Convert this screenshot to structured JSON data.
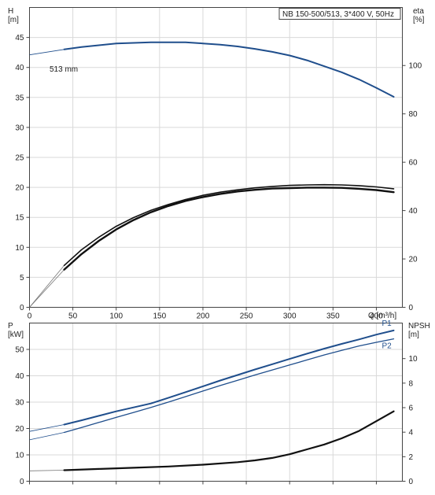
{
  "chart_data": [
    {
      "type": "line",
      "title": "NB 150-500/513, 3*400 V, 50Hz",
      "xlabel": "Q [m³/h]",
      "ylabel": "H\n[m]",
      "ylabel_right": "eta\n[%]",
      "xlim": [
        0,
        430
      ],
      "ylim": [
        0,
        50
      ],
      "ylim_right": [
        0,
        124
      ],
      "xticks": [
        0,
        50,
        100,
        150,
        200,
        250,
        300,
        350,
        400
      ],
      "yticks": [
        0,
        5,
        10,
        15,
        20,
        25,
        30,
        35,
        40,
        45
      ],
      "yticks_right": [
        0,
        20,
        40,
        60,
        80,
        100
      ],
      "grid": true,
      "annotations": [
        "513 mm"
      ],
      "series": [
        {
          "name": "",
          "axis": "left",
          "color": "#1f4e8c",
          "x": [
            0,
            40,
            60,
            80,
            100,
            120,
            140,
            160,
            180,
            200,
            220,
            240,
            260,
            280,
            300,
            320,
            340,
            360,
            380,
            400,
            420
          ],
          "y": [
            42.1,
            43.0,
            43.4,
            43.7,
            44.0,
            44.1,
            44.2,
            44.2,
            44.2,
            44.0,
            43.8,
            43.5,
            43.1,
            42.6,
            42.0,
            41.2,
            40.2,
            39.2,
            38.0,
            36.6,
            35.1
          ]
        },
        {
          "name": "",
          "axis": "right",
          "color": "#111111",
          "x": [
            0,
            40,
            60,
            80,
            100,
            120,
            140,
            160,
            180,
            200,
            220,
            240,
            260,
            280,
            300,
            320,
            340,
            360,
            380,
            400,
            420
          ],
          "y": [
            0,
            15.6,
            22,
            27.5,
            32.2,
            36.1,
            39.3,
            41.9,
            44.0,
            45.6,
            46.9,
            47.9,
            48.6,
            49.1,
            49.3,
            49.5,
            49.5,
            49.4,
            49.0,
            48.5,
            47.6
          ]
        },
        {
          "name": "",
          "axis": "right",
          "color": "#111111",
          "x": [
            0,
            40,
            60,
            80,
            100,
            120,
            140,
            160,
            180,
            200,
            220,
            240,
            260,
            280,
            300,
            320,
            340,
            360,
            380,
            400,
            420
          ],
          "y": [
            0,
            17.3,
            23.8,
            29.0,
            33.5,
            37.1,
            40.1,
            42.5,
            44.6,
            46.3,
            47.6,
            48.6,
            49.4,
            50.0,
            50.4,
            50.6,
            50.7,
            50.6,
            50.3,
            49.8,
            49.0
          ]
        }
      ]
    },
    {
      "type": "line",
      "xlabel": "",
      "ylabel": "P\n[kW]",
      "ylabel_right": "NPSH\n[m]",
      "xlim": [
        0,
        430
      ],
      "ylim": [
        0,
        60
      ],
      "ylim_right": [
        0,
        12.9
      ],
      "yticks": [
        0,
        10,
        20,
        30,
        40,
        50
      ],
      "yticks_right": [
        0,
        2,
        4,
        6,
        8,
        10
      ],
      "grid": true,
      "series": [
        {
          "name": "P1",
          "axis": "left",
          "color": "#1f4e8c",
          "x": [
            0,
            40,
            60,
            80,
            100,
            120,
            140,
            160,
            180,
            200,
            220,
            240,
            260,
            280,
            300,
            320,
            340,
            360,
            380,
            400,
            420
          ],
          "y": [
            18.9,
            21.5,
            23.1,
            24.8,
            26.5,
            28.0,
            29.5,
            31.6,
            33.8,
            36.0,
            38.2,
            40.3,
            42.4,
            44.4,
            46.4,
            48.4,
            50.3,
            52.1,
            53.8,
            55.6,
            57.2
          ]
        },
        {
          "name": "P2",
          "axis": "left",
          "color": "#1f4e8c",
          "x": [
            0,
            40,
            60,
            80,
            100,
            120,
            140,
            160,
            180,
            200,
            220,
            240,
            260,
            280,
            300,
            320,
            340,
            360,
            380,
            400,
            420
          ],
          "y": [
            15.7,
            18.5,
            20.4,
            22.3,
            24.2,
            26.1,
            28.0,
            30.0,
            32.1,
            34.2,
            36.3,
            38.3,
            40.3,
            42.2,
            44.1,
            46.0,
            47.9,
            49.6,
            51.3,
            52.7,
            54.0
          ]
        },
        {
          "name": "",
          "axis": "right",
          "color": "#111111",
          "x": [
            0,
            40,
            80,
            120,
            160,
            200,
            240,
            260,
            280,
            300,
            320,
            340,
            360,
            380,
            400,
            420
          ],
          "y": [
            0.85,
            0.9,
            1.0,
            1.1,
            1.2,
            1.35,
            1.55,
            1.7,
            1.9,
            2.2,
            2.6,
            3.0,
            3.5,
            4.1,
            4.9,
            5.7
          ]
        }
      ]
    }
  ]
}
